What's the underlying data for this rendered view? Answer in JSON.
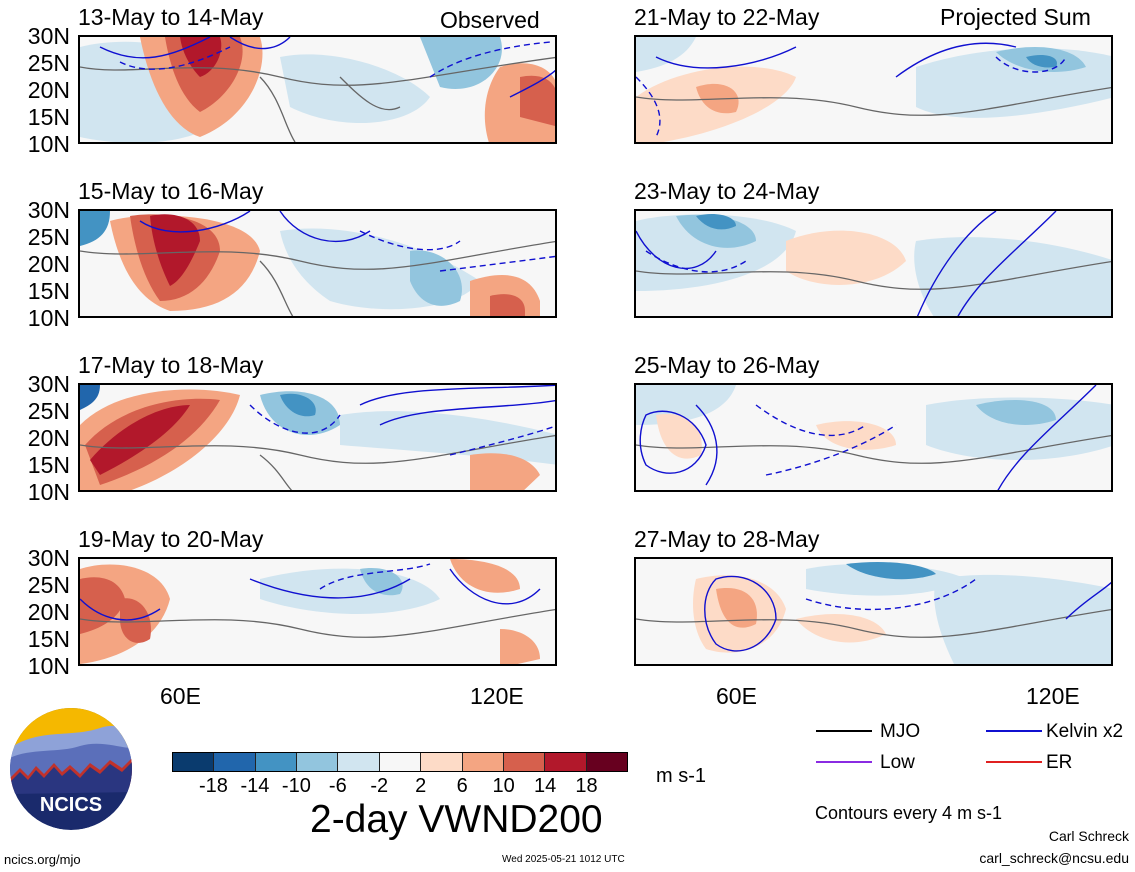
{
  "column_labels": {
    "left": "Observed",
    "right": "Projected Sum"
  },
  "latitude_ticks": [
    "30N",
    "25N",
    "20N",
    "15N",
    "10N"
  ],
  "longitude_ticks": [
    "60E",
    "120E"
  ],
  "panels": [
    {
      "title": "13-May to 14-May"
    },
    {
      "title": "15-May to 16-May"
    },
    {
      "title": "17-May to 18-May"
    },
    {
      "title": "19-May to 20-May"
    },
    {
      "title": "21-May to 22-May"
    },
    {
      "title": "23-May to 24-May"
    },
    {
      "title": "25-May to 26-May"
    },
    {
      "title": "27-May to 28-May"
    }
  ],
  "colorbar": {
    "colors": [
      "#0a3b6e",
      "#2166ac",
      "#4393c3",
      "#92c5de",
      "#d1e5f0",
      "#f7f7f7",
      "#fddbc7",
      "#f4a582",
      "#d6604d",
      "#b2182b",
      "#67001f"
    ],
    "labels": [
      "-18",
      "-14",
      "-10",
      "-6",
      "-2",
      "2",
      "6",
      "10",
      "14",
      "18"
    ],
    "units": "m s-1"
  },
  "title": "2-day VWND200",
  "legend": {
    "items": [
      {
        "label": "MJO",
        "color": "#000000"
      },
      {
        "label": "Kelvin x2",
        "color": "#1010d0"
      },
      {
        "label": "Low",
        "color": "#8a2be2"
      },
      {
        "label": "ER",
        "color": "#e02020"
      }
    ],
    "contour_note": "Contours every 4 m s-1"
  },
  "credit": {
    "name": "Carl Schreck",
    "email": "carl_schreck@ncsu.edu"
  },
  "footer": {
    "url": "ncics.org/mjo",
    "timestamp": "Wed 2025-05-21 1012 UTC"
  },
  "logo": {
    "text": "NCICS"
  }
}
